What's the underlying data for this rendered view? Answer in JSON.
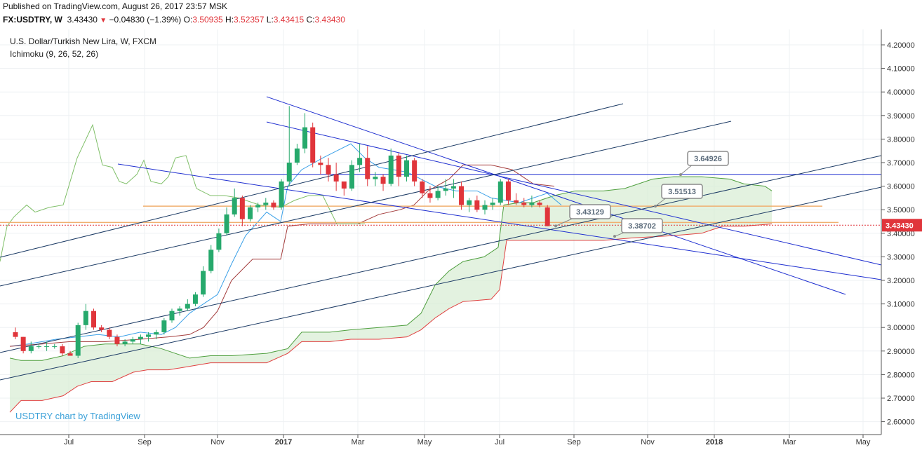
{
  "header": {
    "published": "Published on TradingView.com, August 26, 2017 23:57 MSK",
    "symbol": "FX:USDTRY, W",
    "last": "3.43430",
    "change": "−0.04830 (−1.39%)",
    "o_label": "O:",
    "o": "3.50935",
    "h_label": "H:",
    "h": "3.52357",
    "l_label": "L:",
    "l": "3.43415",
    "c_label": "C:",
    "c": "3.43430"
  },
  "legend": {
    "title": "U.S. Dollar/Turkish New Lira, W, FXCM",
    "indicator": "Ichimoku (9, 26, 52, 26)"
  },
  "brand": "USDTRY chart by TradingView",
  "colors": {
    "up": "#26a96c",
    "down": "#e0353b",
    "tenkan": "#3aa0e8",
    "kijun": "#a33b3b",
    "span_a": "#4f9f3f",
    "span_b": "#e04040",
    "cloud": "#d7ecd3",
    "lagging": "#7fbf68",
    "trend_blue": "#1f2fd0",
    "trend_navy": "#1b3a64",
    "horizontal_orange": "#f0b070",
    "price_line": "#e0353b"
  },
  "chart_data": {
    "type": "candlestick",
    "y_axis_ticks": [
      "4.20000",
      "4.10000",
      "4.00000",
      "3.90000",
      "3.80000",
      "3.70000",
      "3.60000",
      "3.50000",
      "3.40000",
      "3.30000",
      "3.20000",
      "3.10000",
      "3.00000",
      "2.90000",
      "2.80000",
      "2.70000",
      "2.60000"
    ],
    "x_axis_ticks": [
      "Jul",
      "Sep",
      "Nov",
      "2017",
      "Mar",
      "May",
      "Jul",
      "Sep",
      "Nov",
      "2018",
      "Mar",
      "May"
    ],
    "ylim": [
      2.57,
      4.27
    ],
    "price_tag": "3.43430",
    "annotations": [
      "3.64926",
      "3.51513",
      "3.43129",
      "3.38702"
    ],
    "candles": [
      [
        2.98,
        3.0,
        2.95,
        2.96
      ],
      [
        2.96,
        2.96,
        2.89,
        2.9
      ],
      [
        2.9,
        2.94,
        2.89,
        2.92
      ],
      [
        2.92,
        2.93,
        2.91,
        2.92
      ],
      [
        2.92,
        2.94,
        2.9,
        2.92
      ],
      [
        2.92,
        2.93,
        2.91,
        2.92
      ],
      [
        2.92,
        2.93,
        2.88,
        2.89
      ],
      [
        2.89,
        2.9,
        2.88,
        2.88
      ],
      [
        2.88,
        3.02,
        2.87,
        3.01
      ],
      [
        3.01,
        3.1,
        2.99,
        3.07
      ],
      [
        3.07,
        3.08,
        2.99,
        3.0
      ],
      [
        3.0,
        3.01,
        2.98,
        2.99
      ],
      [
        2.99,
        3.0,
        2.95,
        2.96
      ],
      [
        2.96,
        2.97,
        2.92,
        2.93
      ],
      [
        2.93,
        2.95,
        2.92,
        2.94
      ],
      [
        2.94,
        2.96,
        2.93,
        2.95
      ],
      [
        2.95,
        2.97,
        2.93,
        2.96
      ],
      [
        2.96,
        2.98,
        2.94,
        2.97
      ],
      [
        2.97,
        2.99,
        2.95,
        2.98
      ],
      [
        2.98,
        3.04,
        2.97,
        3.03
      ],
      [
        3.03,
        3.08,
        3.02,
        3.07
      ],
      [
        3.07,
        3.09,
        3.05,
        3.08
      ],
      [
        3.08,
        3.12,
        3.07,
        3.1
      ],
      [
        3.1,
        3.15,
        3.09,
        3.14
      ],
      [
        3.14,
        3.26,
        3.13,
        3.24
      ],
      [
        3.24,
        3.35,
        3.23,
        3.33
      ],
      [
        3.33,
        3.42,
        3.32,
        3.4
      ],
      [
        3.4,
        3.51,
        3.39,
        3.48
      ],
      [
        3.48,
        3.59,
        3.47,
        3.55
      ],
      [
        3.55,
        3.56,
        3.43,
        3.46
      ],
      [
        3.46,
        3.52,
        3.45,
        3.51
      ],
      [
        3.51,
        3.53,
        3.49,
        3.52
      ],
      [
        3.52,
        3.55,
        3.5,
        3.53
      ],
      [
        3.53,
        3.54,
        3.5,
        3.51
      ],
      [
        3.51,
        3.63,
        3.5,
        3.62
      ],
      [
        3.62,
        3.94,
        3.6,
        3.7
      ],
      [
        3.7,
        3.78,
        3.69,
        3.76
      ],
      [
        3.76,
        3.91,
        3.74,
        3.85
      ],
      [
        3.85,
        3.87,
        3.68,
        3.7
      ],
      [
        3.7,
        3.73,
        3.65,
        3.69
      ],
      [
        3.69,
        3.72,
        3.62,
        3.65
      ],
      [
        3.65,
        3.7,
        3.58,
        3.62
      ],
      [
        3.62,
        3.61,
        3.56,
        3.59
      ],
      [
        3.59,
        3.71,
        3.58,
        3.69
      ],
      [
        3.69,
        3.78,
        3.66,
        3.72
      ],
      [
        3.72,
        3.77,
        3.6,
        3.63
      ],
      [
        3.63,
        3.66,
        3.6,
        3.64
      ],
      [
        3.64,
        3.65,
        3.58,
        3.61
      ],
      [
        3.61,
        3.76,
        3.6,
        3.73
      ],
      [
        3.73,
        3.74,
        3.6,
        3.64
      ],
      [
        3.64,
        3.73,
        3.62,
        3.71
      ],
      [
        3.71,
        3.72,
        3.6,
        3.62
      ],
      [
        3.62,
        3.63,
        3.55,
        3.57
      ],
      [
        3.57,
        3.6,
        3.53,
        3.55
      ],
      [
        3.55,
        3.6,
        3.54,
        3.58
      ],
      [
        3.58,
        3.63,
        3.56,
        3.59
      ],
      [
        3.59,
        3.63,
        3.55,
        3.6
      ],
      [
        3.6,
        3.62,
        3.5,
        3.52
      ],
      [
        3.52,
        3.55,
        3.49,
        3.54
      ],
      [
        3.54,
        3.56,
        3.49,
        3.5
      ],
      [
        3.5,
        3.54,
        3.48,
        3.52
      ],
      [
        3.52,
        3.55,
        3.5,
        3.53
      ],
      [
        3.53,
        3.63,
        3.52,
        3.62
      ],
      [
        3.62,
        3.63,
        3.52,
        3.54
      ],
      [
        3.54,
        3.57,
        3.52,
        3.53
      ],
      [
        3.53,
        3.55,
        3.51,
        3.52
      ],
      [
        3.52,
        3.56,
        3.51,
        3.53
      ],
      [
        3.53,
        3.54,
        3.51,
        3.52
      ],
      [
        3.51,
        3.52,
        3.43,
        3.43
      ]
    ]
  }
}
